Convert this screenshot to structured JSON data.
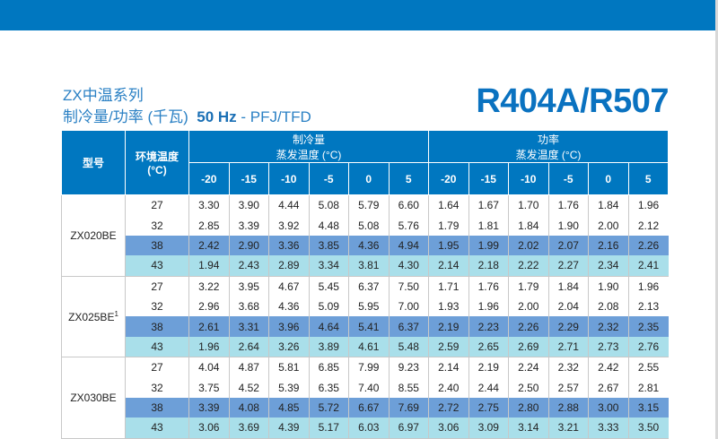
{
  "title_line1": "ZX中温系列",
  "title_line2_prefix": "制冷量/功率 (千瓦)",
  "title_line2_hz": "50 Hz",
  "title_line2_suffix": " - PFJ/TFD",
  "refrigerant": "R404A/R507",
  "table": {
    "col_model": "型号",
    "col_ambient": "环境温度",
    "col_ambient_unit": "(°C)",
    "group_capacity": "制冷量",
    "group_power": "功率",
    "evap_label": "蒸发温度 (°C)",
    "evap_temps": [
      "-20",
      "-15",
      "-10",
      "-5",
      "0",
      "5"
    ],
    "models": [
      {
        "name": "ZX020BE",
        "footnote": "",
        "rows": [
          {
            "t": "27",
            "cap": [
              "3.30",
              "3.90",
              "4.44",
              "5.08",
              "5.79",
              "6.60"
            ],
            "pow": [
              "1.64",
              "1.67",
              "1.70",
              "1.76",
              "1.84",
              "1.96"
            ]
          },
          {
            "t": "32",
            "cap": [
              "2.85",
              "3.39",
              "3.92",
              "4.48",
              "5.08",
              "5.76"
            ],
            "pow": [
              "1.79",
              "1.81",
              "1.84",
              "1.90",
              "2.00",
              "2.12"
            ]
          },
          {
            "t": "38",
            "cap": [
              "2.42",
              "2.90",
              "3.36",
              "3.85",
              "4.36",
              "4.94"
            ],
            "pow": [
              "1.95",
              "1.99",
              "2.02",
              "2.07",
              "2.16",
              "2.26"
            ]
          },
          {
            "t": "43",
            "cap": [
              "1.94",
              "2.43",
              "2.89",
              "3.34",
              "3.81",
              "4.30"
            ],
            "pow": [
              "2.14",
              "2.18",
              "2.22",
              "2.27",
              "2.34",
              "2.41"
            ]
          }
        ]
      },
      {
        "name": "ZX025BE",
        "footnote": "1",
        "rows": [
          {
            "t": "27",
            "cap": [
              "3.22",
              "3.95",
              "4.67",
              "5.45",
              "6.37",
              "7.50"
            ],
            "pow": [
              "1.71",
              "1.76",
              "1.79",
              "1.84",
              "1.90",
              "1.96"
            ]
          },
          {
            "t": "32",
            "cap": [
              "2.96",
              "3.68",
              "4.36",
              "5.09",
              "5.95",
              "7.00"
            ],
            "pow": [
              "1.93",
              "1.96",
              "2.00",
              "2.04",
              "2.08",
              "2.13"
            ]
          },
          {
            "t": "38",
            "cap": [
              "2.61",
              "3.31",
              "3.96",
              "4.64",
              "5.41",
              "6.37"
            ],
            "pow": [
              "2.19",
              "2.23",
              "2.26",
              "2.29",
              "2.32",
              "2.35"
            ]
          },
          {
            "t": "43",
            "cap": [
              "1.96",
              "2.64",
              "3.26",
              "3.89",
              "4.61",
              "5.48"
            ],
            "pow": [
              "2.59",
              "2.65",
              "2.69",
              "2.71",
              "2.73",
              "2.76"
            ]
          }
        ]
      },
      {
        "name": "ZX030BE",
        "footnote": "",
        "rows": [
          {
            "t": "27",
            "cap": [
              "4.04",
              "4.87",
              "5.81",
              "6.85",
              "7.99",
              "9.23"
            ],
            "pow": [
              "2.14",
              "2.19",
              "2.24",
              "2.32",
              "2.42",
              "2.55"
            ]
          },
          {
            "t": "32",
            "cap": [
              "3.75",
              "4.52",
              "5.39",
              "6.35",
              "7.40",
              "8.55"
            ],
            "pow": [
              "2.40",
              "2.44",
              "2.50",
              "2.57",
              "2.67",
              "2.81"
            ]
          },
          {
            "t": "38",
            "cap": [
              "3.39",
              "4.08",
              "4.85",
              "5.72",
              "6.67",
              "7.69"
            ],
            "pow": [
              "2.72",
              "2.75",
              "2.80",
              "2.88",
              "3.00",
              "3.15"
            ]
          },
          {
            "t": "43",
            "cap": [
              "3.06",
              "3.69",
              "4.39",
              "5.17",
              "6.03",
              "6.97"
            ],
            "pow": [
              "3.06",
              "3.09",
              "3.14",
              "3.21",
              "3.33",
              "3.50"
            ]
          }
        ]
      }
    ]
  }
}
